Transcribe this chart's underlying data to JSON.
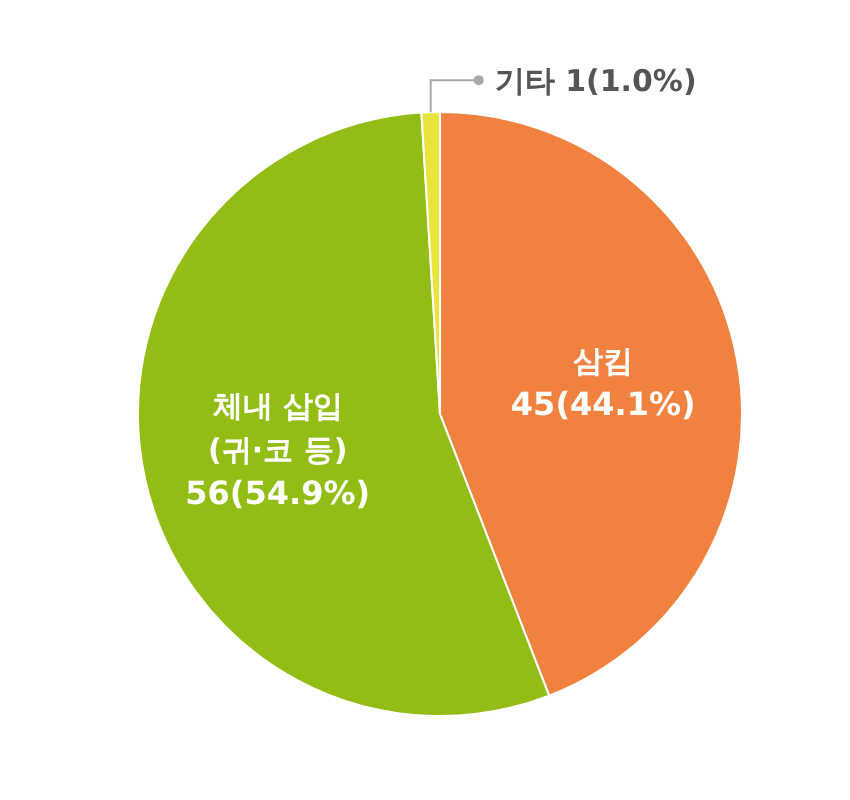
{
  "chart_data": {
    "type": "pie",
    "categories": [
      "삼킴",
      "체내 삽입\n(귀·코 등)",
      "기타"
    ],
    "values": [
      45,
      56,
      1
    ],
    "colors": [
      "#f0813f",
      "#92bd14",
      "#e8e43c"
    ],
    "value_labels": [
      "45(44.1%)",
      "56(54.9%)",
      "1(1.0%)"
    ]
  }
}
